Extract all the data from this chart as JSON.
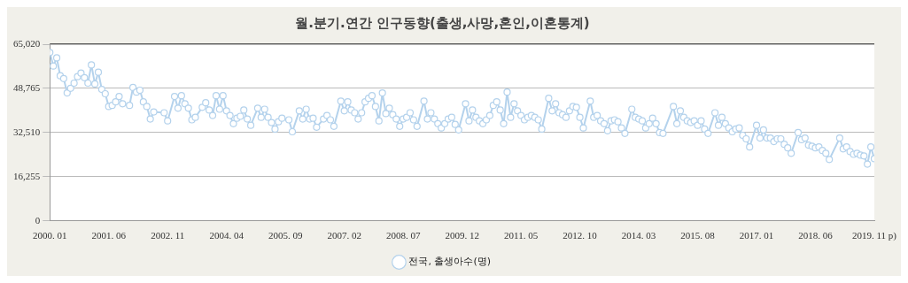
{
  "chart_data": {
    "type": "line",
    "title": "월.분기.연간 인구동향(출생,사망,혼인,이혼통계)",
    "xlim": [
      "2000-01",
      "2019-11"
    ],
    "xticks": [
      {
        "value": "2000-01",
        "label": "2000. 01"
      },
      {
        "value": "2001-06",
        "label": "2001. 06"
      },
      {
        "value": "2002-11",
        "label": "2002. 11"
      },
      {
        "value": "2004-04",
        "label": "2004. 04"
      },
      {
        "value": "2005-09",
        "label": "2005. 09"
      },
      {
        "value": "2007-02",
        "label": "2007. 02"
      },
      {
        "value": "2008-07",
        "label": "2008. 07"
      },
      {
        "value": "2009-12",
        "label": "2009. 12"
      },
      {
        "value": "2011-05",
        "label": "2011. 05"
      },
      {
        "value": "2012-10",
        "label": "2012. 10"
      },
      {
        "value": "2014-03",
        "label": "2014. 03"
      },
      {
        "value": "2015-08",
        "label": "2015. 08"
      },
      {
        "value": "2017-01",
        "label": "2017. 01"
      },
      {
        "value": "2018-06",
        "label": "2018. 06"
      },
      {
        "value": "2019-11",
        "label": "2019. 11 p)"
      }
    ],
    "ylim": [
      0,
      65020
    ],
    "yticks": [
      {
        "value": 0,
        "label": "0"
      },
      {
        "value": 16255,
        "label": "16,255"
      },
      {
        "value": 32510,
        "label": "32,510"
      },
      {
        "value": 48765,
        "label": "48,765"
      },
      {
        "value": 65020,
        "label": "65,020"
      }
    ],
    "grid": "y",
    "legend": "bottom",
    "marker": "circle",
    "line_style": "solid",
    "series": [
      {
        "name": "전국, 출생아수(명)",
        "color": "#b4d2ec",
        "x": [
          "2000-01",
          "2000-02",
          "2000-03",
          "2000-04",
          "2000-05",
          "2000-06",
          "2000-07",
          "2000-08",
          "2000-09",
          "2000-10",
          "2000-11",
          "2000-12",
          "2001-01",
          "2001-02",
          "2001-03",
          "2001-04",
          "2001-05",
          "2001-06",
          "2001-07",
          "2001-08",
          "2001-09",
          "2001-10",
          "2001-12",
          "2002-01",
          "2002-02",
          "2002-03",
          "2002-04",
          "2002-05",
          "2002-06",
          "2002-07",
          "2002-10",
          "2002-11",
          "2003-01",
          "2003-02",
          "2003-03",
          "2003-04",
          "2003-05",
          "2003-06",
          "2003-07",
          "2003-09",
          "2003-10",
          "2003-11",
          "2003-12",
          "2004-01",
          "2004-02",
          "2004-03",
          "2004-04",
          "2004-05",
          "2004-06",
          "2004-07",
          "2004-08",
          "2004-09",
          "2004-10",
          "2004-11",
          "2005-01",
          "2005-02",
          "2005-03",
          "2005-04",
          "2005-05",
          "2005-06",
          "2005-07",
          "2005-08",
          "2005-10",
          "2005-11",
          "2006-01",
          "2006-02",
          "2006-03",
          "2006-04",
          "2006-05",
          "2006-06",
          "2006-08",
          "2006-09",
          "2006-10",
          "2006-11",
          "2007-01",
          "2007-02",
          "2007-03",
          "2007-04",
          "2007-05",
          "2007-06",
          "2007-07",
          "2007-08",
          "2007-09",
          "2007-10",
          "2007-11",
          "2007-12",
          "2008-01",
          "2008-02",
          "2008-03",
          "2008-04",
          "2008-05",
          "2008-06",
          "2008-07",
          "2008-08",
          "2008-09",
          "2008-10",
          "2008-11",
          "2009-01",
          "2009-02",
          "2009-03",
          "2009-04",
          "2009-05",
          "2009-06",
          "2009-07",
          "2009-08",
          "2009-09",
          "2009-10",
          "2009-11",
          "2010-01",
          "2010-02",
          "2010-03",
          "2010-04",
          "2010-05",
          "2010-06",
          "2010-07",
          "2010-08",
          "2010-09",
          "2010-10",
          "2010-11",
          "2010-12",
          "2011-01",
          "2011-02",
          "2011-03",
          "2011-04",
          "2011-05",
          "2011-06",
          "2011-07",
          "2011-08",
          "2011-09",
          "2011-10",
          "2011-11",
          "2012-01",
          "2012-02",
          "2012-03",
          "2012-04",
          "2012-05",
          "2012-06",
          "2012-07",
          "2012-08",
          "2012-09",
          "2012-10",
          "2012-11",
          "2013-01",
          "2013-02",
          "2013-03",
          "2013-04",
          "2013-05",
          "2013-06",
          "2013-07",
          "2013-08",
          "2013-09",
          "2013-10",
          "2013-11",
          "2014-01",
          "2014-02",
          "2014-03",
          "2014-04",
          "2014-05",
          "2014-06",
          "2014-07",
          "2014-08",
          "2014-09",
          "2014-10",
          "2015-01",
          "2015-02",
          "2015-03",
          "2015-04",
          "2015-05",
          "2015-06",
          "2015-07",
          "2015-08",
          "2015-09",
          "2015-10",
          "2015-11",
          "2016-01",
          "2016-02",
          "2016-03",
          "2016-04",
          "2016-05",
          "2016-06",
          "2016-07",
          "2016-08",
          "2016-09",
          "2016-10",
          "2016-11",
          "2017-01",
          "2017-02",
          "2017-03",
          "2017-04",
          "2017-05",
          "2017-06",
          "2017-07",
          "2017-08",
          "2017-09",
          "2017-10",
          "2017-11",
          "2018-01",
          "2018-02",
          "2018-03",
          "2018-04",
          "2018-05",
          "2018-06",
          "2018-07",
          "2018-08",
          "2018-09",
          "2018-10",
          "2019-01",
          "2019-02",
          "2019-03",
          "2019-04",
          "2019-05",
          "2019-06",
          "2019-07",
          "2019-08",
          "2019-09",
          "2019-10",
          "2019-11"
        ],
        "values": [
          62000,
          57000,
          60000,
          53400,
          52400,
          47100,
          48800,
          50700,
          53100,
          54400,
          52700,
          50700,
          57400,
          50400,
          54700,
          48400,
          46800,
          42100,
          42500,
          43800,
          45800,
          43100,
          42500,
          49100,
          47400,
          48100,
          43800,
          42100,
          37500,
          40100,
          39800,
          36800,
          45800,
          41500,
          46100,
          43100,
          41500,
          37200,
          38100,
          41800,
          43500,
          40800,
          38800,
          46100,
          41100,
          46100,
          40500,
          38800,
          35800,
          37800,
          38500,
          40800,
          37500,
          35200,
          41500,
          38100,
          41100,
          38100,
          36200,
          33800,
          36500,
          37800,
          37200,
          32800,
          40500,
          37500,
          41100,
          37500,
          37800,
          34500,
          37500,
          38800,
          37200,
          34800,
          44100,
          40500,
          43800,
          40800,
          39800,
          37500,
          39800,
          43800,
          45100,
          46100,
          42100,
          36800,
          47100,
          39500,
          41500,
          39100,
          37500,
          34800,
          37500,
          38100,
          39800,
          37200,
          34800,
          44100,
          37500,
          39800,
          37500,
          35800,
          34200,
          35800,
          37500,
          38100,
          35500,
          33500,
          43100,
          36800,
          40800,
          38100,
          36800,
          35800,
          37200,
          38800,
          42500,
          43800,
          40800,
          35800,
          47400,
          38100,
          43100,
          40500,
          38800,
          37200,
          38100,
          38800,
          38100,
          37200,
          33800,
          45100,
          40500,
          43100,
          39800,
          39100,
          38100,
          40500,
          42100,
          41800,
          38100,
          34200,
          44100,
          38100,
          38800,
          36800,
          35800,
          33200,
          36800,
          37200,
          36500,
          34200,
          32200,
          41100,
          38100,
          37500,
          36800,
          34200,
          35800,
          37800,
          35800,
          32500,
          32200,
          42100,
          35800,
          40500,
          38100,
          36800,
          36200,
          36800,
          35200,
          36800,
          33800,
          32200,
          39800,
          35200,
          38100,
          35800,
          34200,
          32800,
          33800,
          34200,
          31500,
          30200,
          27200,
          35200,
          30500,
          33500,
          30500,
          30500,
          29200,
          30200,
          30200,
          28200,
          26900,
          24900,
          32500,
          29900,
          30500,
          27900,
          27500,
          26900,
          27200,
          25900,
          24900,
          22600,
          30500,
          26500,
          27200,
          25500,
          24500,
          24900,
          24200,
          23900,
          20900,
          27200,
          22900
        ]
      }
    ]
  }
}
